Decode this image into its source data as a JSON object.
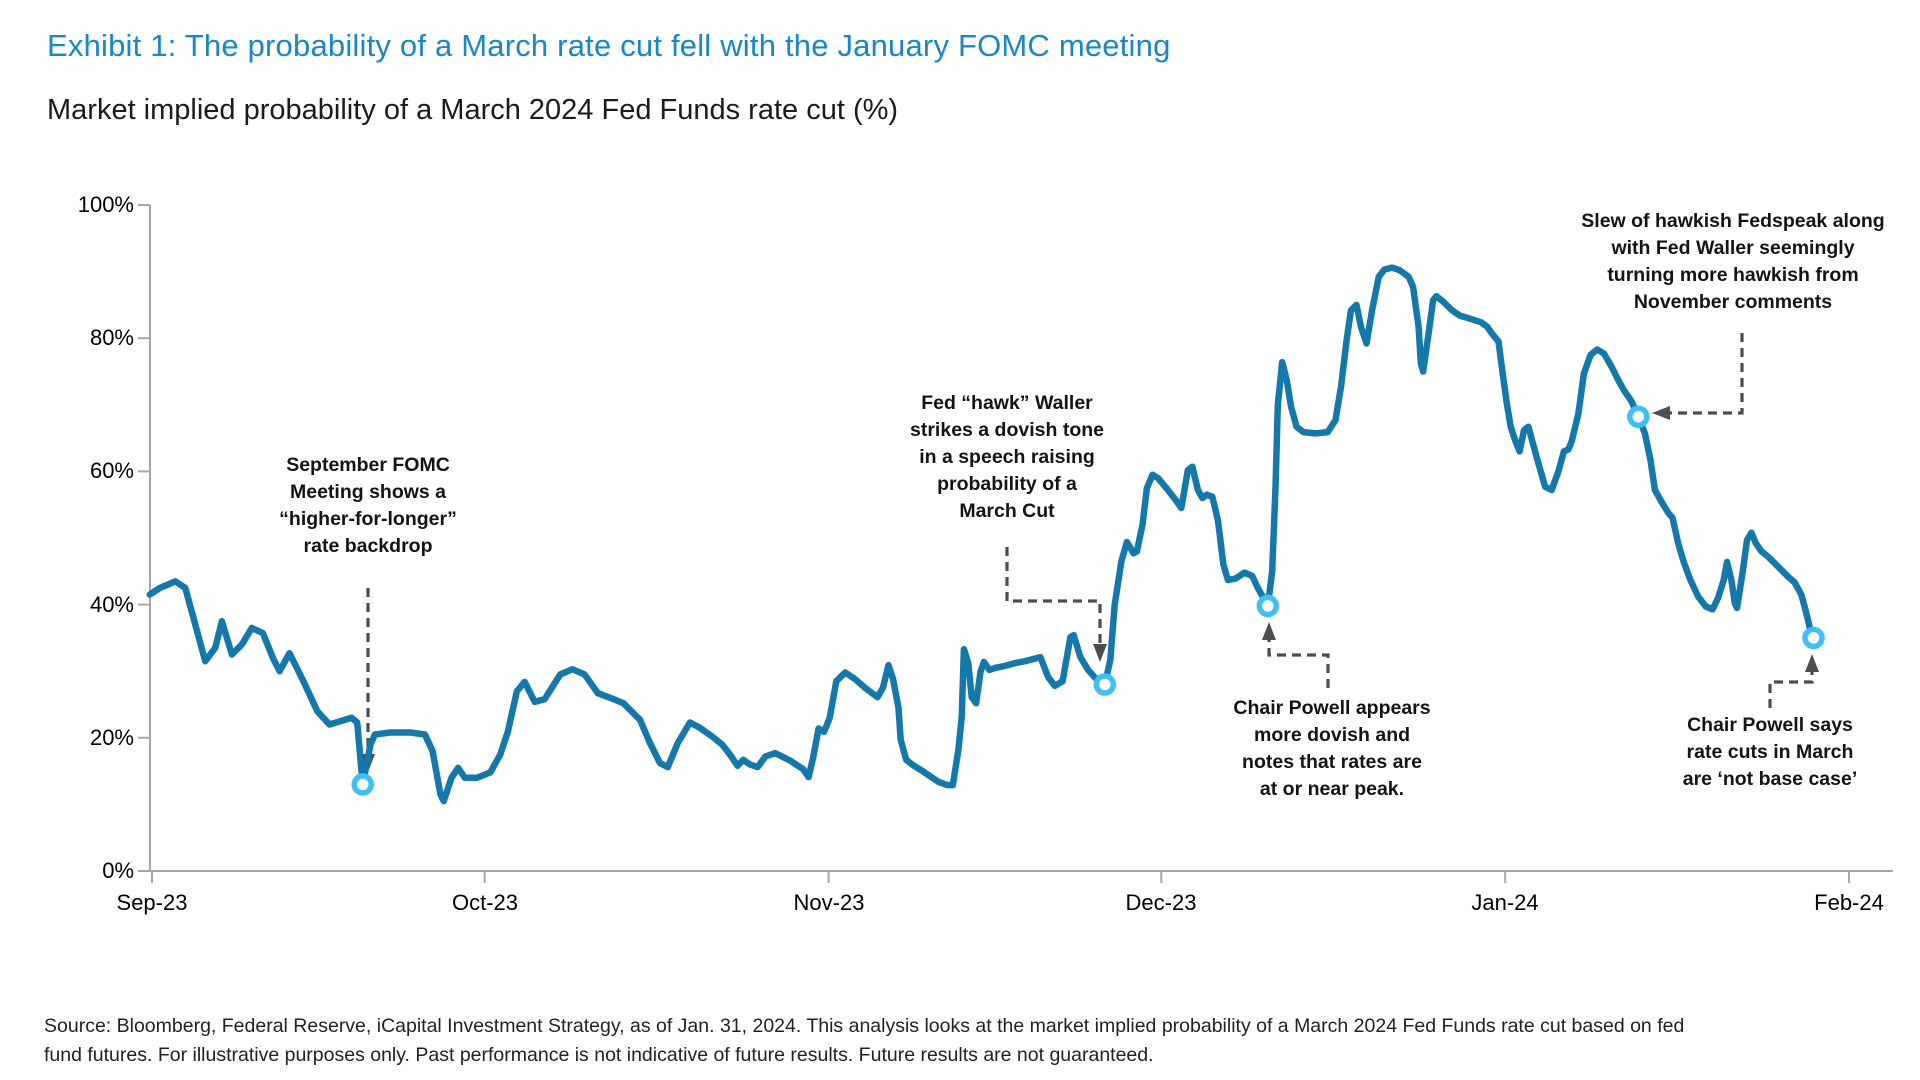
{
  "header": {
    "title": "Exhibit 1: The probability of a March rate cut fell with the January FOMC meeting",
    "subtitle": "Market implied probability of a March 2024 Fed Funds rate cut (%)"
  },
  "source": {
    "line1": "Source: Bloomberg, Federal Reserve, iCapital Investment Strategy, as of Jan. 31, 2024. This analysis looks at the market implied probability of a March 2024 Fed Funds rate cut based on fed",
    "line2": "fund futures. For illustrative purposes only. Past performance is not indicative of future results. Future results are not guaranteed."
  },
  "chart_data": {
    "type": "line",
    "title": "Market implied probability of a March 2024 Fed Funds rate cut (%)",
    "series_name": "Market implied probability of a March 2024 Fed Funds rate cut",
    "grid": false,
    "legend": "none",
    "x_axis": {
      "unit": "days since Sep 1, 2023",
      "tick_labels": [
        "Sep-23",
        "Oct-23",
        "Nov-23",
        "Dec-23",
        "Jan-24",
        "Feb-24"
      ],
      "tick_days": [
        0,
        30,
        61,
        91,
        122,
        153
      ]
    },
    "y_axis": {
      "unit": "%",
      "min": 0,
      "max": 100,
      "tick_labels": [
        "100%",
        "80%",
        "60%",
        "40%",
        "20%",
        "0%"
      ],
      "tick_values": [
        100,
        80,
        60,
        40,
        20,
        0
      ]
    },
    "colors": {
      "line": "#1578aa",
      "marker_ring": "#3ec0f5",
      "axis": "#a6a6a6",
      "connector": "#4d4d4d",
      "title_accent": "#1787c5"
    },
    "points": [
      [
        -0.2,
        41.5
      ],
      [
        0.7,
        42.5
      ],
      [
        2.1,
        43.5
      ],
      [
        3.0,
        42.5
      ],
      [
        3.9,
        37.0
      ],
      [
        4.8,
        31.5
      ],
      [
        5.7,
        33.5
      ],
      [
        6.3,
        37.5
      ],
      [
        7.2,
        32.5
      ],
      [
        8.1,
        34.0
      ],
      [
        9.0,
        36.5
      ],
      [
        10.0,
        35.7
      ],
      [
        10.9,
        32.0
      ],
      [
        11.5,
        30.0
      ],
      [
        12.4,
        32.7
      ],
      [
        13.6,
        28.7
      ],
      [
        14.9,
        24.0
      ],
      [
        16.0,
        22.0
      ],
      [
        17.0,
        22.5
      ],
      [
        18.0,
        23.0
      ],
      [
        18.5,
        22.3
      ],
      [
        19.0,
        13.0
      ],
      [
        19.7,
        19.0
      ],
      [
        20.1,
        20.5
      ],
      [
        21.5,
        20.8
      ],
      [
        23.3,
        20.8
      ],
      [
        24.6,
        20.5
      ],
      [
        25.3,
        18.0
      ],
      [
        26.0,
        11.5
      ],
      [
        26.3,
        10.5
      ],
      [
        27.0,
        14.0
      ],
      [
        27.6,
        15.5
      ],
      [
        28.2,
        14.0
      ],
      [
        29.3,
        14.0
      ],
      [
        30.5,
        14.8
      ],
      [
        31.4,
        17.5
      ],
      [
        32.1,
        21.0
      ],
      [
        32.9,
        27.0
      ],
      [
        33.6,
        28.4
      ],
      [
        34.5,
        25.4
      ],
      [
        35.4,
        25.8
      ],
      [
        36.8,
        29.5
      ],
      [
        37.9,
        30.3
      ],
      [
        39.0,
        29.5
      ],
      [
        40.2,
        26.7
      ],
      [
        41.3,
        26.0
      ],
      [
        42.5,
        25.2
      ],
      [
        44.0,
        22.7
      ],
      [
        44.9,
        19.2
      ],
      [
        45.8,
        16.2
      ],
      [
        46.5,
        15.6
      ],
      [
        47.4,
        19.2
      ],
      [
        48.5,
        22.3
      ],
      [
        49.4,
        21.5
      ],
      [
        50.5,
        20.2
      ],
      [
        51.4,
        19.0
      ],
      [
        52.1,
        17.5
      ],
      [
        52.8,
        15.8
      ],
      [
        53.3,
        16.7
      ],
      [
        53.9,
        16.0
      ],
      [
        54.6,
        15.6
      ],
      [
        55.3,
        17.2
      ],
      [
        56.2,
        17.7
      ],
      [
        57.5,
        16.6
      ],
      [
        58.7,
        15.3
      ],
      [
        59.2,
        14.1
      ],
      [
        59.6,
        17.0
      ],
      [
        60.1,
        21.4
      ],
      [
        60.6,
        20.9
      ],
      [
        61.1,
        23.0
      ],
      [
        61.7,
        28.5
      ],
      [
        62.5,
        29.8
      ],
      [
        63.4,
        28.8
      ],
      [
        64.3,
        27.5
      ],
      [
        65.4,
        26.1
      ],
      [
        65.9,
        27.5
      ],
      [
        66.4,
        30.9
      ],
      [
        66.8,
        28.9
      ],
      [
        67.3,
        24.5
      ],
      [
        67.5,
        19.7
      ],
      [
        68.0,
        16.7
      ],
      [
        68.6,
        15.9
      ],
      [
        69.3,
        15.2
      ],
      [
        70.0,
        14.4
      ],
      [
        70.9,
        13.4
      ],
      [
        71.7,
        12.9
      ],
      [
        72.2,
        12.9
      ],
      [
        72.7,
        18.2
      ],
      [
        73.0,
        23.1
      ],
      [
        73.2,
        33.3
      ],
      [
        73.6,
        31.2
      ],
      [
        73.9,
        26.1
      ],
      [
        74.3,
        25.2
      ],
      [
        74.7,
        29.9
      ],
      [
        75.0,
        31.4
      ],
      [
        75.5,
        30.2
      ],
      [
        76.0,
        30.5
      ],
      [
        76.9,
        30.8
      ],
      [
        77.8,
        31.2
      ],
      [
        78.7,
        31.5
      ],
      [
        80.1,
        32.1
      ],
      [
        80.8,
        29.1
      ],
      [
        81.4,
        27.8
      ],
      [
        82.1,
        28.5
      ],
      [
        82.8,
        35.1
      ],
      [
        83.1,
        35.4
      ],
      [
        83.7,
        32.1
      ],
      [
        84.4,
        30.2
      ],
      [
        85.2,
        28.7
      ],
      [
        85.9,
        28.0
      ],
      [
        86.4,
        31.7
      ],
      [
        86.8,
        40.0
      ],
      [
        87.4,
        46.5
      ],
      [
        87.9,
        49.4
      ],
      [
        88.5,
        47.7
      ],
      [
        88.8,
        48.0
      ],
      [
        89.3,
        52.0
      ],
      [
        89.7,
        57.5
      ],
      [
        90.2,
        59.5
      ],
      [
        90.7,
        59.0
      ],
      [
        91.4,
        57.6
      ],
      [
        92.3,
        55.7
      ],
      [
        92.8,
        54.5
      ],
      [
        93.4,
        60.2
      ],
      [
        93.8,
        60.7
      ],
      [
        94.3,
        57.2
      ],
      [
        94.7,
        56.0
      ],
      [
        95.1,
        56.5
      ],
      [
        95.6,
        56.2
      ],
      [
        96.1,
        52.7
      ],
      [
        96.6,
        46.0
      ],
      [
        97.0,
        43.7
      ],
      [
        97.7,
        43.9
      ],
      [
        98.5,
        44.8
      ],
      [
        99.2,
        44.3
      ],
      [
        99.7,
        42.5
      ],
      [
        100.2,
        41.0
      ],
      [
        100.6,
        39.8
      ],
      [
        101.0,
        45.0
      ],
      [
        101.3,
        58.0
      ],
      [
        101.5,
        70.0
      ],
      [
        101.9,
        76.4
      ],
      [
        102.3,
        73.7
      ],
      [
        102.7,
        69.7
      ],
      [
        103.2,
        66.7
      ],
      [
        103.8,
        65.9
      ],
      [
        104.9,
        65.7
      ],
      [
        106.0,
        65.9
      ],
      [
        106.7,
        67.7
      ],
      [
        107.2,
        72.7
      ],
      [
        107.7,
        79.7
      ],
      [
        108.1,
        84.2
      ],
      [
        108.6,
        85.0
      ],
      [
        109.0,
        81.7
      ],
      [
        109.5,
        79.2
      ],
      [
        110.0,
        84.2
      ],
      [
        110.6,
        89.2
      ],
      [
        111.1,
        90.3
      ],
      [
        111.8,
        90.6
      ],
      [
        112.5,
        90.2
      ],
      [
        113.3,
        89.2
      ],
      [
        113.7,
        87.7
      ],
      [
        114.2,
        81.7
      ],
      [
        114.4,
        76.2
      ],
      [
        114.6,
        75.0
      ],
      [
        115.1,
        80.7
      ],
      [
        115.5,
        85.7
      ],
      [
        115.8,
        86.3
      ],
      [
        116.4,
        85.5
      ],
      [
        117.2,
        84.2
      ],
      [
        117.9,
        83.4
      ],
      [
        118.9,
        82.9
      ],
      [
        119.8,
        82.4
      ],
      [
        120.4,
        81.7
      ],
      [
        120.8,
        80.7
      ],
      [
        121.4,
        79.5
      ],
      [
        121.7,
        75.7
      ],
      [
        122.1,
        70.7
      ],
      [
        122.5,
        66.7
      ],
      [
        122.9,
        64.7
      ],
      [
        123.3,
        63.0
      ],
      [
        123.7,
        66.2
      ],
      [
        124.1,
        66.7
      ],
      [
        124.5,
        64.2
      ],
      [
        125.0,
        61.2
      ],
      [
        125.6,
        57.7
      ],
      [
        126.2,
        57.2
      ],
      [
        126.8,
        60.0
      ],
      [
        127.3,
        63.0
      ],
      [
        127.7,
        63.3
      ],
      [
        128.0,
        64.5
      ],
      [
        128.6,
        68.7
      ],
      [
        129.1,
        74.7
      ],
      [
        129.7,
        77.5
      ],
      [
        130.3,
        78.3
      ],
      [
        130.9,
        77.7
      ],
      [
        131.6,
        75.7
      ],
      [
        132.2,
        73.7
      ],
      [
        132.7,
        72.2
      ],
      [
        133.4,
        70.5
      ],
      [
        134.0,
        68.2
      ],
      [
        134.6,
        65.7
      ],
      [
        135.1,
        61.7
      ],
      [
        135.5,
        57.2
      ],
      [
        136.1,
        55.4
      ],
      [
        136.7,
        53.8
      ],
      [
        137.1,
        53.0
      ],
      [
        137.6,
        49.2
      ],
      [
        138.1,
        46.4
      ],
      [
        138.7,
        43.7
      ],
      [
        139.4,
        41.2
      ],
      [
        140.1,
        39.7
      ],
      [
        140.7,
        39.3
      ],
      [
        141.2,
        41.0
      ],
      [
        141.7,
        43.7
      ],
      [
        142.0,
        46.4
      ],
      [
        142.4,
        43.7
      ],
      [
        142.7,
        40.2
      ],
      [
        142.9,
        39.5
      ],
      [
        143.4,
        44.7
      ],
      [
        143.8,
        49.7
      ],
      [
        144.2,
        50.8
      ],
      [
        144.6,
        49.2
      ],
      [
        145.1,
        48.0
      ],
      [
        145.7,
        47.2
      ],
      [
        146.6,
        45.7
      ],
      [
        147.5,
        44.2
      ],
      [
        148.1,
        43.3
      ],
      [
        148.7,
        41.5
      ],
      [
        149.0,
        39.7
      ],
      [
        149.3,
        37.7
      ],
      [
        149.5,
        36.2
      ],
      [
        149.8,
        35.0
      ]
    ],
    "annotations": [
      {
        "id": "september-fomc",
        "day": 19.0,
        "value": 13,
        "text": "September FOMC\nMeeting shows a\n“higher-for-longer”\nrate backdrop"
      },
      {
        "id": "waller-dovish",
        "day": 85.9,
        "value": 28,
        "text": "Fed “hawk” Waller\nstrikes a dovish tone\nin a speech raising\nprobability of a\nMarch Cut"
      },
      {
        "id": "powell-december",
        "day": 100.6,
        "value": 39.8,
        "text": "Chair Powell appears\nmore dovish and\nnotes that rates are\nat or near peak."
      },
      {
        "id": "hawkish-fedspeak",
        "day": 134.0,
        "value": 68.2,
        "text": "Slew of hawkish Fedspeak along\nwith Fed Waller seemingly\nturning more hawkish from\nNovember comments"
      },
      {
        "id": "powell-january",
        "day": 149.8,
        "value": 35,
        "text": "Chair Powell says\nrate cuts in March\nare ‘not base case’"
      }
    ]
  }
}
